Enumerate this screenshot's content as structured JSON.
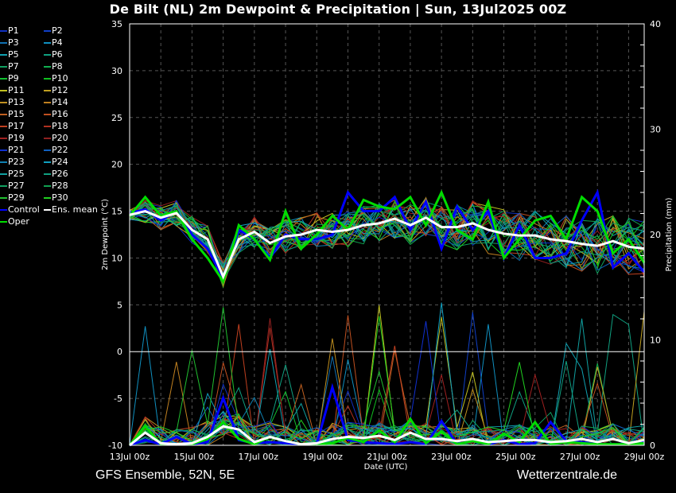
{
  "chart_data": {
    "type": "line",
    "title": "De Bilt  (NL)  2m Dewpoint & Precipitation | Sun, 13Jul2025 00Z",
    "xlabel": "Date (UTC)",
    "ylabel": "2m Dewpoint (°C)",
    "y2label": "Precipitation (mm)",
    "ylim": [
      -10,
      35
    ],
    "y2lim": [
      0,
      40
    ],
    "yticks": [
      "35",
      "30",
      "25",
      "20",
      "15",
      "10",
      "5",
      "0",
      "-5",
      "-10"
    ],
    "y2ticks": [
      "40",
      "30",
      "20",
      "10",
      "0"
    ],
    "xticks": [
      "13Jul 00z",
      "15Jul 00z",
      "17Jul 00z",
      "19Jul 00z",
      "21Jul 00z",
      "23Jul 00z",
      "25Jul 00z",
      "27Jul 00z",
      "29Jul 00z"
    ],
    "x_hours_step": 12,
    "grid": true,
    "legend_position": "left",
    "colors": {
      "control": "#0000ff",
      "oper": "#00dd00",
      "mean": "#ffffff",
      "members": [
        "#1030c0",
        "#1040c8",
        "#1070b0",
        "#1090c0",
        "#10a0b0",
        "#10a080",
        "#10a060",
        "#10b050",
        "#10c030",
        "#10c020",
        "#c0c020",
        "#c0a020",
        "#c09020",
        "#c08020",
        "#c06020",
        "#c05020",
        "#c04020",
        "#b03020",
        "#a02020",
        "#902020",
        "#1030d0",
        "#1060c0",
        "#1080b0",
        "#10a0c0",
        "#10a0a0",
        "#10a080",
        "#10a060",
        "#10a050",
        "#20c030",
        "#20d020"
      ]
    },
    "series": {
      "mean": {
        "name": "Ens. mean",
        "dewpoint": [
          14.6,
          15.0,
          14.3,
          14.8,
          13.0,
          12.0,
          8.0,
          12.0,
          12.8,
          11.6,
          12.3,
          12.5,
          13.0,
          12.8,
          13.0,
          13.5,
          13.7,
          14.2,
          13.5,
          14.3,
          13.3,
          13.3,
          13.7,
          13.0,
          12.6,
          12.4,
          12.4,
          12.0,
          11.8,
          11.5,
          11.3,
          11.8,
          11.2,
          11.0
        ],
        "precip": [
          0.0,
          1.2,
          0.2,
          0.1,
          0.2,
          0.8,
          1.8,
          1.5,
          0.3,
          0.8,
          0.4,
          0.1,
          0.2,
          0.6,
          0.8,
          0.7,
          0.9,
          0.5,
          1.2,
          0.6,
          0.6,
          0.4,
          0.6,
          0.3,
          0.4,
          0.5,
          0.5,
          0.3,
          0.4,
          0.6,
          0.3,
          0.6,
          0.2,
          0.5
        ]
      },
      "control": {
        "name": "Control",
        "dewpoint": [
          14.8,
          15.2,
          14.0,
          15.0,
          12.5,
          11.0,
          7.8,
          13.0,
          12.0,
          10.0,
          12.5,
          12.0,
          12.0,
          12.5,
          17.0,
          15.0,
          15.0,
          16.5,
          13.0,
          16.0,
          11.0,
          15.5,
          13.0,
          15.0,
          10.0,
          13.5,
          10.0,
          10.0,
          10.5,
          14.0,
          17.0,
          9.0,
          10.5,
          8.5
        ],
        "precip": [
          0.0,
          0.5,
          0.1,
          0.8,
          0.1,
          0.3,
          4.5,
          0.5,
          0.2,
          0.3,
          0.2,
          0.1,
          0.1,
          5.5,
          0.5,
          0.3,
          0.2,
          0.1,
          0.3,
          0.1,
          2.3,
          0.1,
          0.4,
          0.1,
          0.5,
          0.1,
          0.2,
          2.2,
          0.4,
          0.3,
          0.1,
          0.1,
          0.1,
          0.3
        ]
      },
      "oper": {
        "name": "Oper",
        "dewpoint": [
          14.5,
          16.5,
          14.5,
          15.0,
          12.0,
          10.0,
          7.5,
          13.5,
          12.0,
          9.8,
          15.0,
          11.0,
          12.5,
          14.5,
          13.0,
          16.2,
          15.5,
          15.2,
          16.5,
          13.5,
          17.0,
          13.0,
          12.0,
          16.0,
          10.0,
          12.0,
          14.0,
          14.5,
          12.0,
          16.5,
          15.0,
          10.5,
          12.0,
          9.5
        ],
        "precip": [
          0.0,
          1.8,
          0.1,
          0.1,
          0.1,
          0.6,
          2.2,
          0.6,
          0.1,
          0.8,
          0.4,
          0.1,
          0.1,
          0.2,
          0.7,
          0.3,
          1.4,
          0.3,
          2.5,
          0.2,
          1.3,
          0.1,
          0.4,
          0.1,
          1.1,
          0.3,
          2.2,
          0.1,
          0.3,
          0.2,
          0.1,
          0.1,
          0.1,
          0.2
        ]
      }
    },
    "members": [
      {
        "name": "P1"
      },
      {
        "name": "P2"
      },
      {
        "name": "P3"
      },
      {
        "name": "P4"
      },
      {
        "name": "P5"
      },
      {
        "name": "P6"
      },
      {
        "name": "P7"
      },
      {
        "name": "P8"
      },
      {
        "name": "P9"
      },
      {
        "name": "P10"
      },
      {
        "name": "P11"
      },
      {
        "name": "P12"
      },
      {
        "name": "P13"
      },
      {
        "name": "P14"
      },
      {
        "name": "P15"
      },
      {
        "name": "P16"
      },
      {
        "name": "P17"
      },
      {
        "name": "P18"
      },
      {
        "name": "P19"
      },
      {
        "name": "P20"
      },
      {
        "name": "P21"
      },
      {
        "name": "P22"
      },
      {
        "name": "P23"
      },
      {
        "name": "P24"
      },
      {
        "name": "P25"
      },
      {
        "name": "P26"
      },
      {
        "name": "P27"
      },
      {
        "name": "P28"
      },
      {
        "name": "P29"
      },
      {
        "name": "P30"
      }
    ],
    "member_spread": {
      "dewpoint_sd": 2.0,
      "precip_peak_max": 13.0
    }
  },
  "legend": {
    "items": [
      "P1",
      "P2",
      "P3",
      "P4",
      "P5",
      "P6",
      "P7",
      "P8",
      "P9",
      "P10",
      "P11",
      "P12",
      "P13",
      "P14",
      "P15",
      "P16",
      "P17",
      "P18",
      "P19",
      "P20",
      "P21",
      "P22",
      "P23",
      "P24",
      "P25",
      "P26",
      "P27",
      "P28",
      "P29",
      "P30",
      "Control",
      "Ens. mean",
      "Oper"
    ]
  },
  "footer": {
    "model": "GFS Ensemble, 52N, 5E",
    "source": "Wetterzentrale.de"
  }
}
